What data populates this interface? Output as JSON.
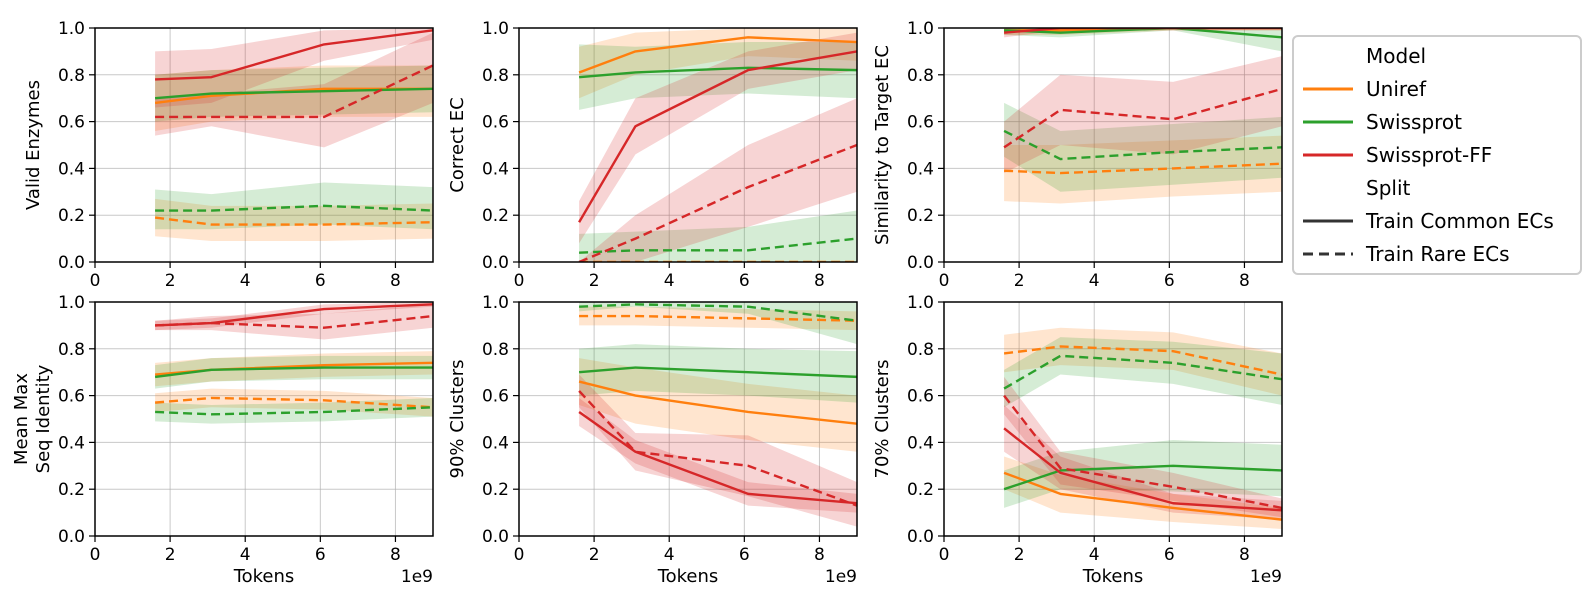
{
  "colors": {
    "Uniref": "#ff7f0e",
    "Swissprot": "#2ca02c",
    "Swissprot-FF": "#d62728"
  },
  "legend": {
    "model_title": "Model",
    "models": [
      "Uniref",
      "Swissprot",
      "Swissprot-FF"
    ],
    "split_title": "Split",
    "splits": [
      "Train Common ECs",
      "Train Rare ECs"
    ]
  },
  "chart_data": [
    {
      "type": "line",
      "id": "valid-enzymes",
      "ylabel": "Valid Enzymes",
      "xlabel": "",
      "xlim": [
        0,
        9
      ],
      "ylim": [
        0,
        1
      ],
      "xticks": [
        "0",
        "2",
        "4",
        "6",
        "8"
      ],
      "yticks": [
        "0.0",
        "0.2",
        "0.4",
        "0.6",
        "0.8",
        "1.0"
      ],
      "x": [
        1.6,
        3.1,
        6.1,
        9.0
      ],
      "series": [
        {
          "model": "Uniref",
          "split": "Train Common ECs",
          "values": [
            0.68,
            0.71,
            0.74,
            0.74
          ],
          "lower": [
            0.56,
            0.6,
            0.62,
            0.62
          ],
          "upper": [
            0.8,
            0.82,
            0.84,
            0.84
          ]
        },
        {
          "model": "Uniref",
          "split": "Train Rare ECs",
          "values": [
            0.19,
            0.16,
            0.16,
            0.17
          ],
          "lower": [
            0.11,
            0.09,
            0.09,
            0.1
          ],
          "upper": [
            0.27,
            0.24,
            0.24,
            0.25
          ]
        },
        {
          "model": "Swissprot",
          "split": "Train Common ECs",
          "values": [
            0.7,
            0.72,
            0.73,
            0.74
          ],
          "lower": [
            0.6,
            0.62,
            0.63,
            0.64
          ],
          "upper": [
            0.8,
            0.82,
            0.83,
            0.84
          ]
        },
        {
          "model": "Swissprot",
          "split": "Train Rare ECs",
          "values": [
            0.22,
            0.22,
            0.24,
            0.22
          ],
          "lower": [
            0.14,
            0.14,
            0.16,
            0.14
          ],
          "upper": [
            0.31,
            0.29,
            0.34,
            0.32
          ]
        },
        {
          "model": "Swissprot-FF",
          "split": "Train Common ECs",
          "values": [
            0.78,
            0.79,
            0.93,
            0.99
          ],
          "lower": [
            0.66,
            0.68,
            0.86,
            0.95
          ],
          "upper": [
            0.9,
            0.91,
            0.99,
            1.0
          ]
        },
        {
          "model": "Swissprot-FF",
          "split": "Train Rare ECs",
          "values": [
            0.62,
            0.62,
            0.62,
            0.84
          ],
          "lower": [
            0.54,
            0.58,
            0.49,
            0.68
          ],
          "upper": [
            0.7,
            0.72,
            0.76,
            0.98
          ]
        }
      ]
    },
    {
      "type": "line",
      "id": "correct-ec",
      "ylabel": "Correct EC",
      "xlabel": "",
      "xlim": [
        0,
        9
      ],
      "ylim": [
        0,
        1
      ],
      "xticks": [
        "0",
        "2",
        "4",
        "6",
        "8"
      ],
      "yticks": [
        "0.0",
        "0.2",
        "0.4",
        "0.6",
        "0.8",
        "1.0"
      ],
      "x": [
        1.6,
        3.1,
        6.1,
        9.0
      ],
      "series": [
        {
          "model": "Uniref",
          "split": "Train Common ECs",
          "values": [
            0.81,
            0.9,
            0.96,
            0.94
          ],
          "lower": [
            0.7,
            0.8,
            0.88,
            0.86
          ],
          "upper": [
            0.92,
            0.98,
            1.0,
            1.0
          ]
        },
        {
          "model": "Uniref",
          "split": "Train Rare ECs",
          "values": [
            0.0,
            0.0,
            0.0,
            0.0
          ],
          "lower": [
            0.0,
            0.0,
            0.0,
            0.0
          ],
          "upper": [
            0.0,
            0.0,
            0.0,
            0.0
          ]
        },
        {
          "model": "Swissprot",
          "split": "Train Common ECs",
          "values": [
            0.79,
            0.81,
            0.83,
            0.82
          ],
          "lower": [
            0.65,
            0.7,
            0.72,
            0.7
          ],
          "upper": [
            0.93,
            0.92,
            0.94,
            0.94
          ]
        },
        {
          "model": "Swissprot",
          "split": "Train Rare ECs",
          "values": [
            0.04,
            0.05,
            0.05,
            0.1
          ],
          "lower": [
            0.0,
            0.0,
            0.0,
            0.0
          ],
          "upper": [
            0.12,
            0.13,
            0.15,
            0.22
          ]
        },
        {
          "model": "Swissprot-FF",
          "split": "Train Common ECs",
          "values": [
            0.17,
            0.58,
            0.82,
            0.9
          ],
          "lower": [
            0.08,
            0.46,
            0.74,
            0.82
          ],
          "upper": [
            0.26,
            0.7,
            0.9,
            0.98
          ]
        },
        {
          "model": "Swissprot-FF",
          "split": "Train Rare ECs",
          "values": [
            0.0,
            0.1,
            0.32,
            0.5
          ],
          "lower": [
            0.0,
            0.0,
            0.15,
            0.3
          ],
          "upper": [
            0.0,
            0.2,
            0.5,
            0.7
          ]
        }
      ]
    },
    {
      "type": "line",
      "id": "similarity-to-target-ec",
      "ylabel": "Similarity to Target EC",
      "xlabel": "",
      "xlim": [
        0,
        9
      ],
      "ylim": [
        0,
        1
      ],
      "xticks": [
        "0",
        "2",
        "4",
        "6",
        "8"
      ],
      "yticks": [
        "0.0",
        "0.2",
        "0.4",
        "0.6",
        "0.8",
        "1.0"
      ],
      "x": [
        1.6,
        3.1,
        6.1,
        9.0
      ],
      "series": [
        {
          "model": "Uniref",
          "split": "Train Common ECs",
          "values": [
            0.99,
            0.99,
            1.0,
            1.0
          ],
          "lower": [
            0.97,
            0.97,
            0.99,
            0.99
          ],
          "upper": [
            1.0,
            1.0,
            1.0,
            1.0
          ]
        },
        {
          "model": "Uniref",
          "split": "Train Rare ECs",
          "values": [
            0.39,
            0.38,
            0.4,
            0.42
          ],
          "lower": [
            0.26,
            0.25,
            0.28,
            0.3
          ],
          "upper": [
            0.5,
            0.5,
            0.52,
            0.54
          ]
        },
        {
          "model": "Swissprot",
          "split": "Train Common ECs",
          "values": [
            0.99,
            0.98,
            1.0,
            0.96
          ],
          "lower": [
            0.97,
            0.96,
            0.99,
            0.9
          ],
          "upper": [
            1.0,
            1.0,
            1.0,
            1.0
          ]
        },
        {
          "model": "Swissprot",
          "split": "Train Rare ECs",
          "values": [
            0.56,
            0.44,
            0.47,
            0.49
          ],
          "lower": [
            0.45,
            0.3,
            0.33,
            0.36
          ],
          "upper": [
            0.68,
            0.56,
            0.59,
            0.62
          ]
        },
        {
          "model": "Swissprot-FF",
          "split": "Train Common ECs",
          "values": [
            0.98,
            1.0,
            1.0,
            1.0
          ],
          "lower": [
            0.96,
            0.99,
            0.99,
            0.99
          ],
          "upper": [
            1.0,
            1.0,
            1.0,
            1.0
          ]
        },
        {
          "model": "Swissprot-FF",
          "split": "Train Rare ECs",
          "values": [
            0.49,
            0.65,
            0.61,
            0.74
          ],
          "lower": [
            0.38,
            0.5,
            0.46,
            0.58
          ],
          "upper": [
            0.6,
            0.8,
            0.77,
            0.88
          ]
        }
      ]
    },
    {
      "type": "line",
      "id": "mean-max-seq-identity",
      "ylabel": [
        "Mean Max",
        "Seq Identity"
      ],
      "xlabel": "Tokens",
      "xlim": [
        0,
        9
      ],
      "ylim": [
        0,
        1
      ],
      "xticks": [
        "0",
        "2",
        "4",
        "6",
        "8"
      ],
      "yticks": [
        "0.0",
        "0.2",
        "0.4",
        "0.6",
        "0.8",
        "1.0"
      ],
      "x": [
        1.6,
        3.1,
        6.1,
        9.0
      ],
      "xscale_label": "1e9",
      "series": [
        {
          "model": "Uniref",
          "split": "Train Common ECs",
          "values": [
            0.69,
            0.71,
            0.73,
            0.74
          ],
          "lower": [
            0.64,
            0.66,
            0.68,
            0.69
          ],
          "upper": [
            0.74,
            0.76,
            0.78,
            0.79
          ]
        },
        {
          "model": "Uniref",
          "split": "Train Rare ECs",
          "values": [
            0.57,
            0.59,
            0.58,
            0.55
          ],
          "lower": [
            0.53,
            0.55,
            0.54,
            0.51
          ],
          "upper": [
            0.61,
            0.63,
            0.62,
            0.59
          ]
        },
        {
          "model": "Swissprot",
          "split": "Train Common ECs",
          "values": [
            0.68,
            0.71,
            0.72,
            0.72
          ],
          "lower": [
            0.63,
            0.66,
            0.67,
            0.67
          ],
          "upper": [
            0.73,
            0.76,
            0.77,
            0.77
          ]
        },
        {
          "model": "Swissprot",
          "split": "Train Rare ECs",
          "values": [
            0.53,
            0.52,
            0.53,
            0.55
          ],
          "lower": [
            0.49,
            0.48,
            0.49,
            0.51
          ],
          "upper": [
            0.57,
            0.56,
            0.57,
            0.59
          ]
        },
        {
          "model": "Swissprot-FF",
          "split": "Train Common ECs",
          "values": [
            0.9,
            0.91,
            0.97,
            0.99
          ],
          "lower": [
            0.88,
            0.89,
            0.95,
            0.98
          ],
          "upper": [
            0.92,
            0.93,
            0.99,
            1.0
          ]
        },
        {
          "model": "Swissprot-FF",
          "split": "Train Rare ECs",
          "values": [
            0.9,
            0.91,
            0.89,
            0.94
          ],
          "lower": [
            0.88,
            0.88,
            0.84,
            0.89
          ],
          "upper": [
            0.92,
            0.94,
            0.95,
            0.99
          ]
        }
      ]
    },
    {
      "type": "line",
      "id": "90-clusters",
      "ylabel": "90% Clusters",
      "xlabel": "Tokens",
      "xlim": [
        0,
        9
      ],
      "ylim": [
        0,
        1
      ],
      "xticks": [
        "0",
        "2",
        "4",
        "6",
        "8"
      ],
      "yticks": [
        "0.0",
        "0.2",
        "0.4",
        "0.6",
        "0.8",
        "1.0"
      ],
      "x": [
        1.6,
        3.1,
        6.1,
        9.0
      ],
      "xscale_label": "1e9",
      "series": [
        {
          "model": "Uniref",
          "split": "Train Common ECs",
          "values": [
            0.66,
            0.6,
            0.53,
            0.48
          ],
          "lower": [
            0.56,
            0.48,
            0.41,
            0.36
          ],
          "upper": [
            0.76,
            0.72,
            0.65,
            0.6
          ]
        },
        {
          "model": "Uniref",
          "split": "Train Rare ECs",
          "values": [
            0.94,
            0.94,
            0.93,
            0.92
          ],
          "lower": [
            0.9,
            0.9,
            0.89,
            0.88
          ],
          "upper": [
            0.98,
            0.98,
            0.97,
            0.96
          ]
        },
        {
          "model": "Swissprot",
          "split": "Train Common ECs",
          "values": [
            0.7,
            0.72,
            0.7,
            0.68
          ],
          "lower": [
            0.6,
            0.62,
            0.6,
            0.57
          ],
          "upper": [
            0.8,
            0.82,
            0.8,
            0.79
          ]
        },
        {
          "model": "Swissprot",
          "split": "Train Rare ECs",
          "values": [
            0.98,
            0.99,
            0.98,
            0.92
          ],
          "lower": [
            0.96,
            0.98,
            0.95,
            0.82
          ],
          "upper": [
            1.0,
            1.0,
            1.0,
            1.0
          ]
        },
        {
          "model": "Swissprot-FF",
          "split": "Train Common ECs",
          "values": [
            0.53,
            0.36,
            0.18,
            0.14
          ],
          "lower": [
            0.47,
            0.31,
            0.13,
            0.1
          ],
          "upper": [
            0.59,
            0.41,
            0.23,
            0.18
          ]
        },
        {
          "model": "Swissprot-FF",
          "split": "Train Rare ECs",
          "values": [
            0.62,
            0.36,
            0.3,
            0.13
          ],
          "lower": [
            0.55,
            0.28,
            0.17,
            0.04
          ],
          "upper": [
            0.69,
            0.44,
            0.43,
            0.23
          ]
        }
      ]
    },
    {
      "type": "line",
      "id": "70-clusters",
      "ylabel": "70% Clusters",
      "xlabel": "Tokens",
      "xlim": [
        0,
        9
      ],
      "ylim": [
        0,
        1
      ],
      "xticks": [
        "0",
        "2",
        "4",
        "6",
        "8"
      ],
      "yticks": [
        "0.0",
        "0.2",
        "0.4",
        "0.6",
        "0.8",
        "1.0"
      ],
      "x": [
        1.6,
        3.1,
        6.1,
        9.0
      ],
      "xscale_label": "1e9",
      "series": [
        {
          "model": "Uniref",
          "split": "Train Common ECs",
          "values": [
            0.27,
            0.18,
            0.12,
            0.07
          ],
          "lower": [
            0.2,
            0.1,
            0.06,
            0.03
          ],
          "upper": [
            0.34,
            0.26,
            0.18,
            0.12
          ]
        },
        {
          "model": "Uniref",
          "split": "Train Rare ECs",
          "values": [
            0.78,
            0.81,
            0.79,
            0.69
          ],
          "lower": [
            0.7,
            0.73,
            0.71,
            0.6
          ],
          "upper": [
            0.86,
            0.89,
            0.87,
            0.78
          ]
        },
        {
          "model": "Swissprot",
          "split": "Train Common ECs",
          "values": [
            0.2,
            0.28,
            0.3,
            0.28
          ],
          "lower": [
            0.12,
            0.2,
            0.19,
            0.17
          ],
          "upper": [
            0.28,
            0.36,
            0.41,
            0.39
          ]
        },
        {
          "model": "Swissprot",
          "split": "Train Rare ECs",
          "values": [
            0.63,
            0.77,
            0.74,
            0.67
          ],
          "lower": [
            0.55,
            0.69,
            0.65,
            0.56
          ],
          "upper": [
            0.71,
            0.85,
            0.83,
            0.78
          ]
        },
        {
          "model": "Swissprot-FF",
          "split": "Train Common ECs",
          "values": [
            0.46,
            0.27,
            0.14,
            0.11
          ],
          "lower": [
            0.36,
            0.2,
            0.1,
            0.07
          ],
          "upper": [
            0.56,
            0.34,
            0.18,
            0.15
          ]
        },
        {
          "model": "Swissprot-FF",
          "split": "Train Rare ECs",
          "values": [
            0.6,
            0.29,
            0.21,
            0.12
          ],
          "lower": [
            0.52,
            0.22,
            0.15,
            0.08
          ],
          "upper": [
            0.68,
            0.36,
            0.27,
            0.16
          ]
        }
      ]
    }
  ]
}
